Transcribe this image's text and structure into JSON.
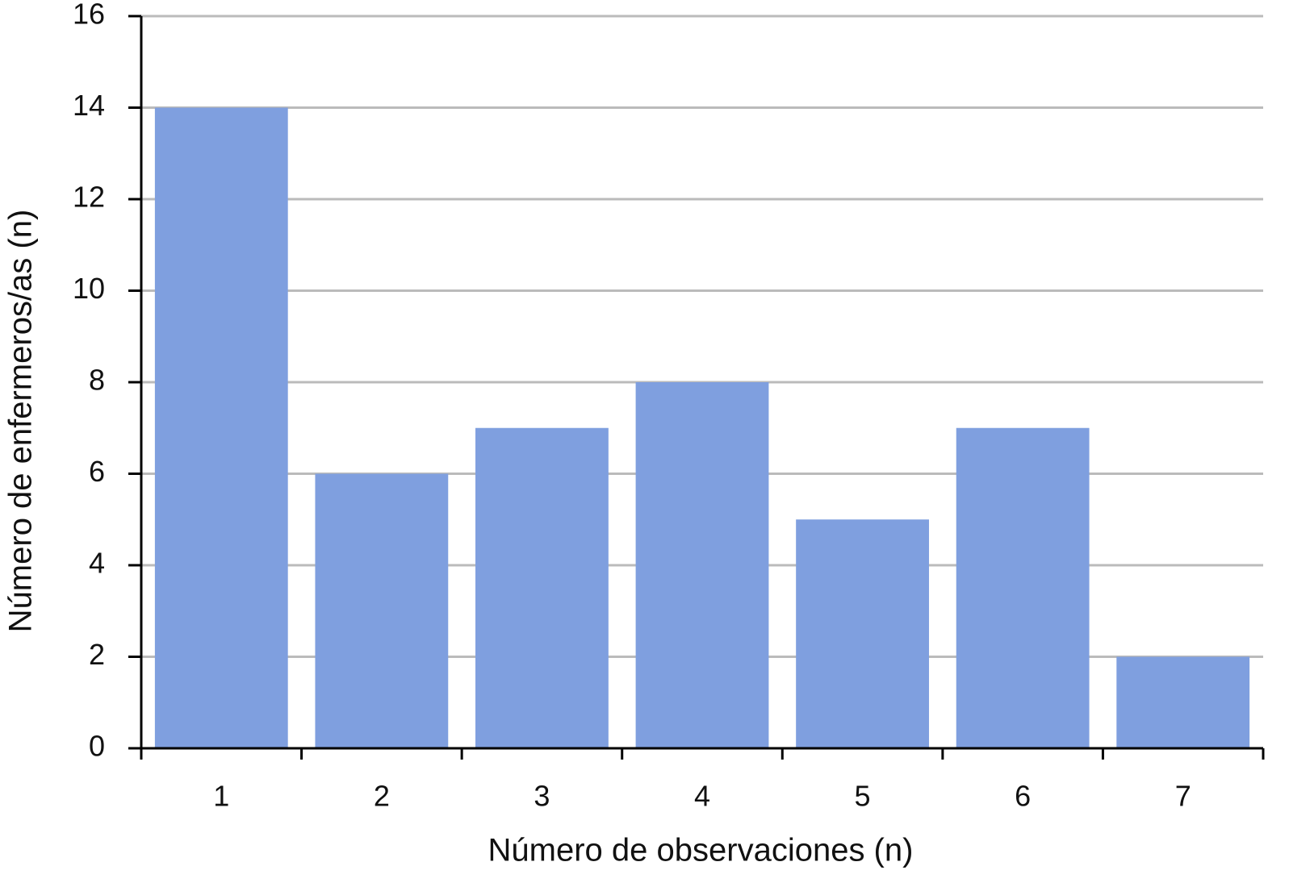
{
  "chart_data": {
    "type": "bar",
    "categories": [
      "1",
      "2",
      "3",
      "4",
      "5",
      "6",
      "7"
    ],
    "values": [
      14,
      6,
      7,
      8,
      5,
      7,
      2
    ],
    "color": "#7f9fdf",
    "x_label": "Número de observaciones (n)",
    "y_label": "Número de enfermeros/as (n)",
    "ylim": [
      0,
      16
    ],
    "yticks": [
      0,
      2,
      4,
      6,
      8,
      10,
      12,
      14,
      16
    ],
    "grid": true
  }
}
